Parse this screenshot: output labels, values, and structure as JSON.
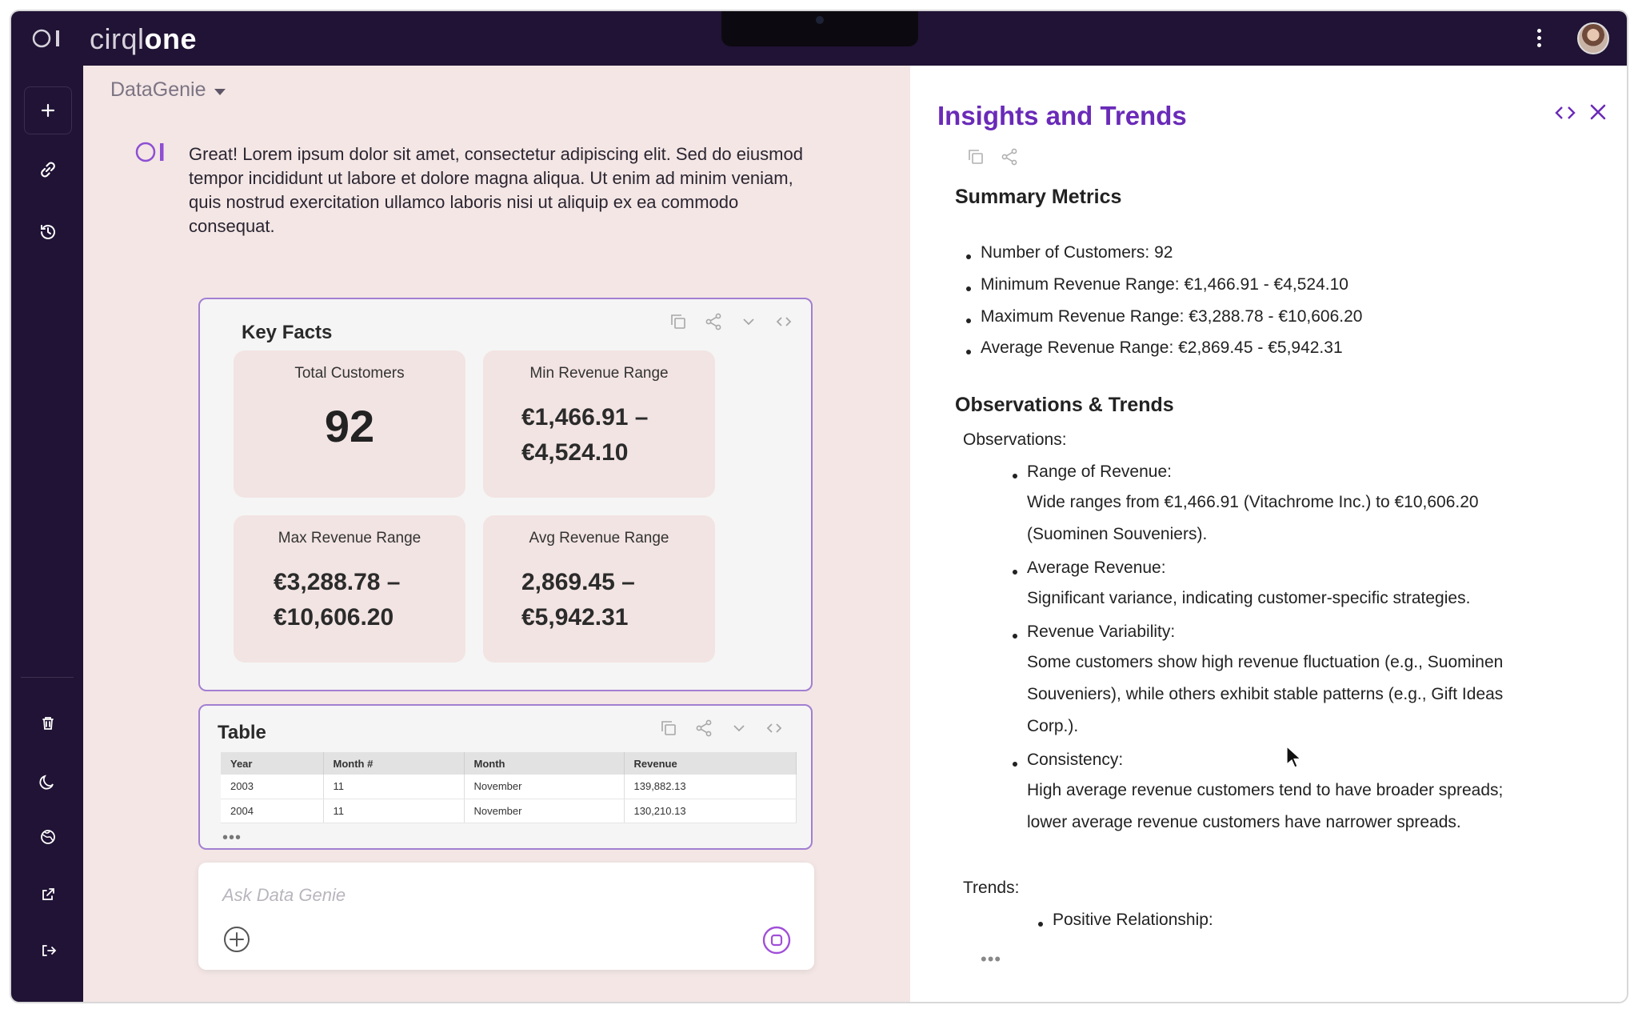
{
  "app": {
    "brand_part1": "cirql",
    "brand_part2": "one"
  },
  "sidebar": {
    "top_items": [
      "plus-icon",
      "link-icon",
      "history-icon"
    ],
    "bottom_items": [
      "trash-icon",
      "moon-icon",
      "globe-icon",
      "external-link-icon",
      "logout-icon"
    ]
  },
  "chat": {
    "genie_name": "DataGenie",
    "bot_message": "Great! Lorem ipsum dolor sit amet, consectetur adipiscing elit. Sed do eiusmod tempor incididunt ut labore et dolore magna aliqua. Ut enim ad minim veniam, quis nostrud exercitation ullamco laboris nisi ut aliquip ex ea commodo consequat.",
    "key_facts": {
      "title": "Key Facts",
      "tiles": [
        {
          "label": "Total Customers",
          "value": "92"
        },
        {
          "label": "Min Revenue Range",
          "value_line1": "€1,466.91 –",
          "value_line2": "€4,524.10"
        },
        {
          "label": "Max Revenue Range",
          "value_line1": "€3,288.78 –",
          "value_line2": "€10,606.20"
        },
        {
          "label": "Avg Revenue Range",
          "value_line1": "2,869.45 –",
          "value_line2": "€5,942.31"
        }
      ]
    },
    "table": {
      "title": "Table",
      "headers": [
        "Year",
        "Month #",
        "Month",
        "Revenue"
      ],
      "rows": [
        [
          "2003",
          "11",
          "November",
          "139,882.13"
        ],
        [
          "2004",
          "11",
          "November",
          "130,210.13"
        ]
      ],
      "more": "•••"
    },
    "ask_placeholder": "Ask Data Genie"
  },
  "insights": {
    "title": "Insights and Trends",
    "summary_heading": "Summary Metrics",
    "summary_items": [
      "Number of Customers: 92",
      "Minimum Revenue Range: €1,466.91 - €4,524.10",
      "Maximum Revenue Range: €3,288.78 - €10,606.20",
      "Average Revenue Range: €2,869.45 - €5,942.31"
    ],
    "obs_heading": "Observations & Trends",
    "observations_label": "Observations:",
    "observations": [
      {
        "title": "Range of Revenue:",
        "text_line1": "Wide ranges from €1,466.91 (Vitachrome Inc.) to €10,606.20",
        "text_line2": "(Suominen Souveniers)."
      },
      {
        "title": "Average Revenue:",
        "text_line1": "Significant variance, indicating customer-specific strategies."
      },
      {
        "title": "Revenue Variability:",
        "text_line1": "Some customers show high revenue fluctuation (e.g., Suominen",
        "text_line2": "Souveniers), while others exhibit stable patterns (e.g., Gift Ideas",
        "text_line3": "Corp.)."
      },
      {
        "title": "Consistency:",
        "text_line1": "High average revenue customers tend to have broader spreads;",
        "text_line2": "lower average revenue customers have narrower spreads."
      }
    ],
    "trends_label": "Trends:",
    "trends": [
      "Positive Relationship:"
    ],
    "more": "•••"
  },
  "colors": {
    "nav_bg": "#201335",
    "accent_purple": "#6a2ab8",
    "card_border": "#a27fd1",
    "chat_bg": "#f3e6e5"
  }
}
